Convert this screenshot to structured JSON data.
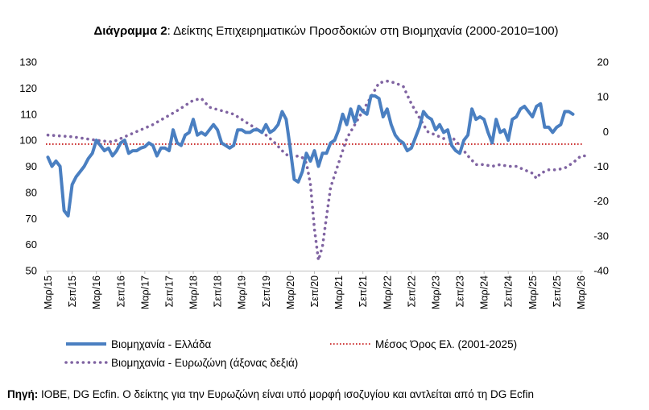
{
  "chart_data": {
    "type": "line",
    "title_bold": "Διάγραμμα 2",
    "title_rest": ": Δείκτης Επιχειρηματικών Προσδοκιών στη Βιομηχανία (2000-2010=100)",
    "source_bold": "Πηγή:",
    "source_rest": " ΙΟΒΕ, DG Ecfin. Ο δείκτης για την Ευρωζώνη είναι υπό μορφή ισοζυγίου και αντλείται από τη DG Ecfin",
    "y_left": {
      "ylim": [
        50,
        130
      ],
      "ticks": [
        "130",
        "120",
        "110",
        "100",
        "90",
        "80",
        "70",
        "60",
        "50"
      ]
    },
    "y_right": {
      "ylim": [
        -40,
        20
      ],
      "ticks": [
        "20",
        "10",
        "0",
        "-10",
        "-20",
        "-30",
        "-40"
      ]
    },
    "x_tick_labels": [
      "Μαρ/15",
      "Σεπ/15",
      "Μαρ/16",
      "Σεπ/16",
      "Μαρ/17",
      "Σεπ/17",
      "Μαρ/18",
      "Σεπ/18",
      "Μαρ/19",
      "Σεπ/19",
      "Μαρ/20",
      "Σεπ/20",
      "Μαρ/21",
      "Σεπ/21",
      "Μαρ/22",
      "Σεπ/22",
      "Μαρ/23",
      "Σεπ/23",
      "Μαρ/24",
      "Σεπ/24",
      "Μαρ/25",
      "Σεπ/25",
      "Μαρ/26"
    ],
    "months": 133,
    "series": [
      {
        "name": "Βιομηχανία  - Ελλάδα",
        "axis": "left",
        "color": "#4a7fc1",
        "style": "solid",
        "anchors": [
          [
            0,
            93.5
          ],
          [
            1,
            90
          ],
          [
            2,
            92
          ],
          [
            3,
            90
          ],
          [
            4,
            73
          ],
          [
            5,
            71
          ],
          [
            6,
            83
          ],
          [
            7,
            86
          ],
          [
            8,
            88
          ],
          [
            9,
            90
          ],
          [
            10,
            93
          ],
          [
            11,
            95
          ],
          [
            12,
            100
          ],
          [
            13,
            98
          ],
          [
            14,
            96
          ],
          [
            15,
            97
          ],
          [
            16,
            94
          ],
          [
            17,
            96
          ],
          [
            18,
            99
          ],
          [
            19,
            100
          ],
          [
            20,
            95
          ],
          [
            21,
            96
          ],
          [
            22,
            96
          ],
          [
            23,
            97
          ],
          [
            24,
            97.5
          ],
          [
            25,
            99
          ],
          [
            26,
            98
          ],
          [
            27,
            94
          ],
          [
            28,
            97
          ],
          [
            29,
            97
          ],
          [
            30,
            96
          ],
          [
            31,
            104
          ],
          [
            32,
            99
          ],
          [
            33,
            98
          ],
          [
            34,
            102
          ],
          [
            35,
            103
          ],
          [
            36,
            108
          ],
          [
            37,
            102
          ],
          [
            38,
            103
          ],
          [
            39,
            102
          ],
          [
            40,
            104
          ],
          [
            41,
            106
          ],
          [
            42,
            104
          ],
          [
            43,
            99
          ],
          [
            44,
            98
          ],
          [
            45,
            97
          ],
          [
            46,
            98
          ],
          [
            47,
            104
          ],
          [
            48,
            104
          ],
          [
            49,
            103
          ],
          [
            50,
            103
          ],
          [
            51,
            104
          ],
          [
            52,
            104
          ],
          [
            53,
            103
          ],
          [
            54,
            106
          ],
          [
            55,
            103
          ],
          [
            56,
            104
          ],
          [
            57,
            106
          ],
          [
            58,
            111
          ],
          [
            59,
            108
          ],
          [
            60,
            97
          ],
          [
            61,
            85
          ],
          [
            62,
            84
          ],
          [
            63,
            88
          ],
          [
            64,
            95
          ],
          [
            65,
            92
          ],
          [
            66,
            96
          ],
          [
            67,
            90
          ],
          [
            68,
            95
          ],
          [
            69,
            95
          ],
          [
            70,
            99
          ],
          [
            71,
            100
          ],
          [
            72,
            104
          ],
          [
            73,
            110
          ],
          [
            74,
            106
          ],
          [
            75,
            112
          ],
          [
            76,
            107
          ],
          [
            77,
            113
          ],
          [
            78,
            111
          ],
          [
            79,
            110
          ],
          [
            80,
            117
          ],
          [
            81,
            117
          ],
          [
            82,
            116
          ],
          [
            83,
            109
          ],
          [
            84,
            112
          ],
          [
            85,
            106
          ],
          [
            86,
            102
          ],
          [
            87,
            100
          ],
          [
            88,
            99
          ],
          [
            89,
            96
          ],
          [
            90,
            97
          ],
          [
            91,
            101
          ],
          [
            92,
            105
          ],
          [
            93,
            111
          ],
          [
            94,
            109
          ],
          [
            95,
            108
          ],
          [
            96,
            104
          ],
          [
            97,
            106
          ],
          [
            98,
            103
          ],
          [
            99,
            104
          ],
          [
            100,
            98
          ],
          [
            101,
            96
          ],
          [
            102,
            95
          ],
          [
            103,
            100
          ],
          [
            104,
            102
          ],
          [
            105,
            112
          ],
          [
            106,
            108
          ],
          [
            107,
            109
          ],
          [
            108,
            108
          ],
          [
            109,
            103
          ],
          [
            110,
            99
          ],
          [
            111,
            108
          ],
          [
            112,
            103
          ],
          [
            113,
            104
          ],
          [
            114,
            100
          ],
          [
            115,
            108
          ],
          [
            116,
            109
          ],
          [
            117,
            112
          ],
          [
            118,
            113
          ],
          [
            119,
            111
          ],
          [
            120,
            109
          ],
          [
            121,
            113
          ],
          [
            122,
            114
          ],
          [
            123,
            105
          ],
          [
            124,
            105
          ],
          [
            125,
            103
          ],
          [
            126,
            105
          ],
          [
            127,
            106
          ],
          [
            128,
            111
          ],
          [
            129,
            111
          ],
          [
            130,
            110
          ]
        ]
      },
      {
        "name": "Μέσος Όρος Ελ. (2001-2025)",
        "axis": "left",
        "color": "#c00000",
        "style": "dotted-thin",
        "value": 98.5
      },
      {
        "name": "Βιομηχανία - Ευρωζώνη (άξονας δεξιά)",
        "axis": "right",
        "color": "#8064a2",
        "style": "dotted-thick",
        "anchors": [
          [
            0,
            -1
          ],
          [
            6,
            -1.5
          ],
          [
            12,
            -2.5
          ],
          [
            16,
            -3
          ],
          [
            20,
            -1
          ],
          [
            26,
            2
          ],
          [
            32,
            6
          ],
          [
            36,
            9
          ],
          [
            38,
            9.5
          ],
          [
            40,
            7
          ],
          [
            46,
            5
          ],
          [
            50,
            2
          ],
          [
            54,
            -1
          ],
          [
            56,
            -3
          ],
          [
            58,
            -5.5
          ],
          [
            60,
            -7.5
          ],
          [
            62,
            -7
          ],
          [
            63,
            -7.5
          ],
          [
            64,
            -9
          ],
          [
            65,
            -15
          ],
          [
            66,
            -28
          ],
          [
            67,
            -37
          ],
          [
            68,
            -33
          ],
          [
            70,
            -16
          ],
          [
            72,
            -9
          ],
          [
            74,
            -2
          ],
          [
            76,
            2
          ],
          [
            78,
            6
          ],
          [
            80,
            10
          ],
          [
            82,
            14
          ],
          [
            84,
            14.5
          ],
          [
            86,
            14
          ],
          [
            88,
            13
          ],
          [
            90,
            8
          ],
          [
            92,
            4
          ],
          [
            94,
            0
          ],
          [
            96,
            -1
          ],
          [
            98,
            -2
          ],
          [
            100,
            -1.5
          ],
          [
            102,
            -4
          ],
          [
            104,
            -7
          ],
          [
            106,
            -9.5
          ],
          [
            108,
            -9.5
          ],
          [
            110,
            -10
          ],
          [
            112,
            -9.5
          ],
          [
            114,
            -10
          ],
          [
            116,
            -10
          ],
          [
            118,
            -11
          ],
          [
            120,
            -12
          ],
          [
            121,
            -13.5
          ],
          [
            122,
            -12
          ],
          [
            124,
            -11
          ],
          [
            126,
            -11
          ],
          [
            128,
            -10.5
          ],
          [
            130,
            -9
          ],
          [
            132,
            -7
          ],
          [
            133,
            -7
          ]
        ]
      }
    ]
  }
}
